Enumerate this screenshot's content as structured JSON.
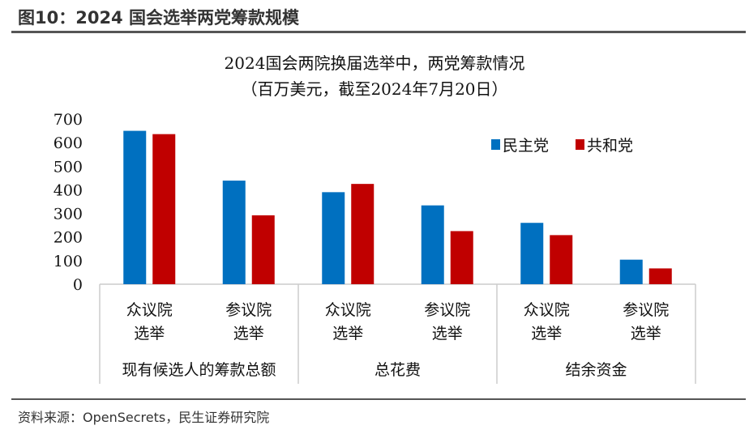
{
  "figure_title": "图10：2024 国会选举两党筹款规模",
  "source": "资料来源：OpenSecrets，民生证券研究院",
  "chart_data": {
    "type": "bar",
    "title": "2024国会两院换届选举中，两党筹款情况",
    "subtitle": "（百万美元，截至2024年7月20日）",
    "categories": [
      "众议院\n选举",
      "参议院\n选举",
      "众议院\n选举",
      "参议院\n选举",
      "众议院\n选举",
      "参议院\n选举"
    ],
    "groups": [
      "现有候选人的筹款总额",
      "总花费",
      "结余资金"
    ],
    "series": [
      {
        "name": "民主党",
        "color": "#0070C0",
        "values": [
          650,
          439,
          390,
          334,
          260,
          104
        ]
      },
      {
        "name": "共和党",
        "color": "#C00000",
        "values": [
          636,
          292,
          425,
          225,
          208,
          67
        ]
      }
    ],
    "yticks": [
      0,
      100,
      200,
      300,
      400,
      500,
      600,
      700
    ],
    "ylim": [
      0,
      700
    ],
    "grid": false,
    "legend": "top-right"
  }
}
